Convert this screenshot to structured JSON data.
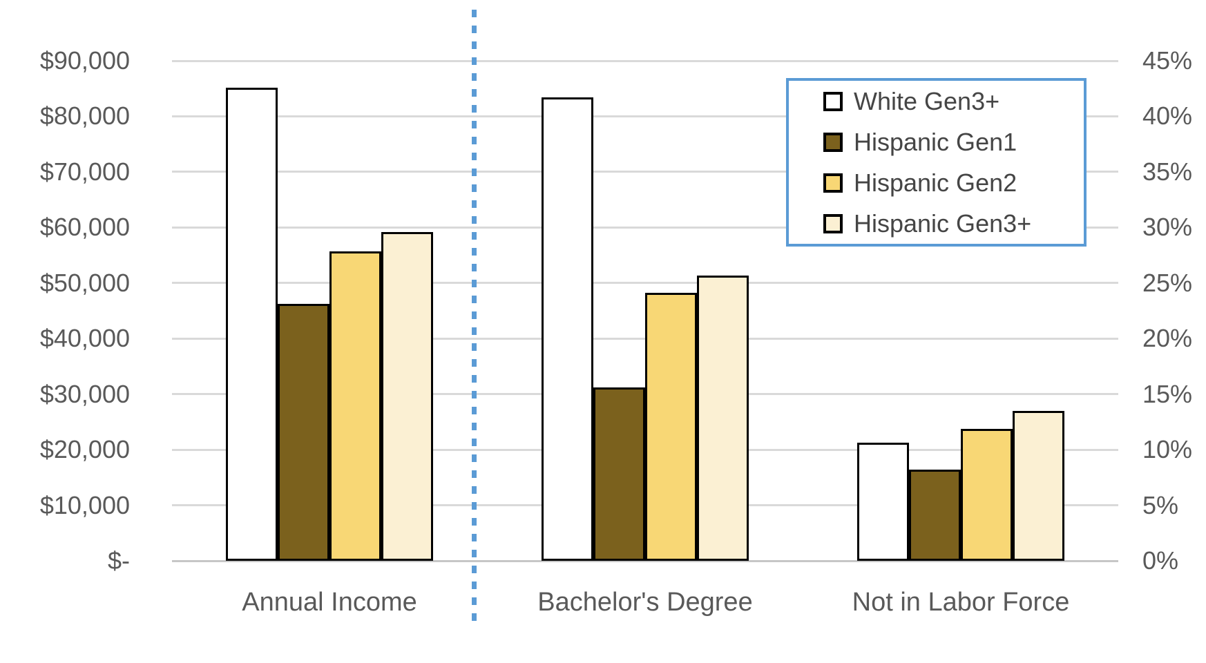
{
  "chart_data": {
    "type": "bar",
    "subtype": "grouped-dual-axis-column",
    "title": "",
    "categories": [
      "Annual Income",
      "Bachelor's Degree",
      "Not in Labor Force"
    ],
    "category_axis_side": [
      "left",
      "right",
      "right"
    ],
    "series": [
      {
        "name": "White Gen3+",
        "fill": "#ffffff",
        "border": "#000000",
        "values": [
          85200,
          41.7,
          10.6
        ]
      },
      {
        "name": "Hispanic Gen1",
        "fill": "#7b611d",
        "border": "#000000",
        "values": [
          46300,
          15.6,
          8.2
        ]
      },
      {
        "name": "Hispanic Gen2",
        "fill": "#f8d775",
        "border": "#000000",
        "values": [
          55700,
          24.1,
          11.9
        ]
      },
      {
        "name": "Hispanic Gen3+",
        "fill": "#fbf0d3",
        "border": "#000000",
        "values": [
          59200,
          25.7,
          13.5
        ]
      }
    ],
    "left_axis": {
      "max": 90000,
      "min": 0,
      "unit": "USD",
      "ticks": [
        "$-",
        "$10,000",
        "$20,000",
        "$30,000",
        "$40,000",
        "$50,000",
        "$60,000",
        "$70,000",
        "$80,000",
        "$90,000"
      ]
    },
    "right_axis": {
      "max": 45,
      "min": 0,
      "unit": "percent",
      "ticks": [
        "0%",
        "5%",
        "10%",
        "15%",
        "20%",
        "25%",
        "30%",
        "35%",
        "40%",
        "45%"
      ]
    },
    "grid": true,
    "gridline_color": "#d9d9d9",
    "axis_text_color": "#595959",
    "legend": {
      "position": "top-right",
      "border_color": "#5b9bd5",
      "entries": [
        "White Gen3+",
        "Hispanic Gen1",
        "Hispanic Gen2",
        "Hispanic Gen3+"
      ]
    },
    "separator": {
      "after_category_index": 0,
      "style": "dotted-vertical",
      "color": "#5b9bd5"
    }
  }
}
